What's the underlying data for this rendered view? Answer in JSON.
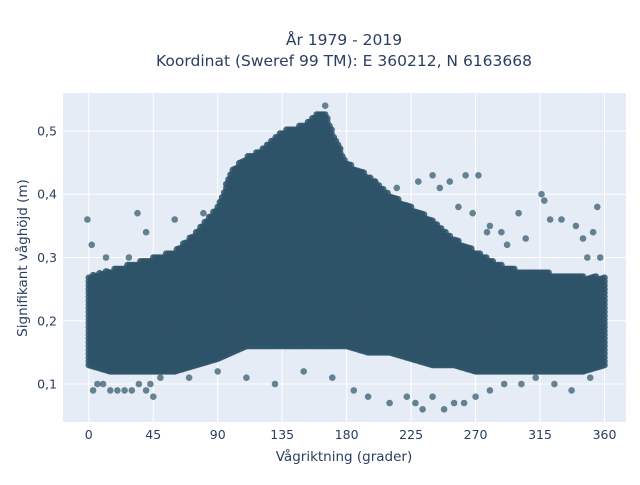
{
  "chart_data": {
    "type": "scatter",
    "title_lines": [
      "År 1979 - 2019",
      "Koordinat (Sweref 99 TM): E 360212, N 6163668"
    ],
    "xlabel": "Vågriktning (grader)",
    "ylabel": "Signifikant våghöjd (m)",
    "xlim": [
      -18,
      375
    ],
    "ylim": [
      0.04,
      0.56
    ],
    "xticks": [
      0,
      45,
      90,
      135,
      180,
      225,
      270,
      315,
      360
    ],
    "xtick_labels": [
      "0",
      "45",
      "90",
      "135",
      "180",
      "225",
      "270",
      "315",
      "360"
    ],
    "yticks": [
      0.1,
      0.2,
      0.3,
      0.4,
      0.5
    ],
    "ytick_labels": [
      "0,1",
      "0,2",
      "0,3",
      "0,4",
      "0,5"
    ],
    "grid": true,
    "colors": {
      "marker": "#2e5469",
      "plot_background": "#e5ecf6",
      "grid": "#ffffff",
      "text": "#2a3f5f"
    },
    "series": [
      {
        "dense_band": [
          [
            0,
            0.13,
            0.27
          ],
          [
            15,
            0.12,
            0.28
          ],
          [
            30,
            0.12,
            0.29
          ],
          [
            45,
            0.12,
            0.3
          ],
          [
            60,
            0.12,
            0.31
          ],
          [
            75,
            0.13,
            0.34
          ],
          [
            90,
            0.14,
            0.38
          ],
          [
            100,
            0.15,
            0.44
          ],
          [
            110,
            0.16,
            0.46
          ],
          [
            120,
            0.16,
            0.47
          ],
          [
            135,
            0.16,
            0.5
          ],
          [
            150,
            0.16,
            0.51
          ],
          [
            160,
            0.16,
            0.53
          ],
          [
            165,
            0.16,
            0.53
          ],
          [
            170,
            0.16,
            0.5
          ],
          [
            180,
            0.16,
            0.45
          ],
          [
            195,
            0.15,
            0.43
          ],
          [
            210,
            0.15,
            0.4
          ],
          [
            225,
            0.14,
            0.38
          ],
          [
            240,
            0.13,
            0.36
          ],
          [
            255,
            0.13,
            0.33
          ],
          [
            270,
            0.12,
            0.31
          ],
          [
            285,
            0.12,
            0.29
          ],
          [
            300,
            0.12,
            0.28
          ],
          [
            315,
            0.12,
            0.28
          ],
          [
            330,
            0.12,
            0.27
          ],
          [
            345,
            0.12,
            0.27
          ],
          [
            360,
            0.13,
            0.27
          ]
        ],
        "outliers": [
          [
            -1,
            0.36
          ],
          [
            2,
            0.32
          ],
          [
            3,
            0.09
          ],
          [
            6,
            0.1
          ],
          [
            10,
            0.1
          ],
          [
            15,
            0.09
          ],
          [
            20,
            0.09
          ],
          [
            25,
            0.09
          ],
          [
            30,
            0.09
          ],
          [
            35,
            0.1
          ],
          [
            40,
            0.09
          ],
          [
            43,
            0.1
          ],
          [
            45,
            0.08
          ],
          [
            34,
            0.37
          ],
          [
            40,
            0.34
          ],
          [
            60,
            0.36
          ],
          [
            80,
            0.37
          ],
          [
            50,
            0.11
          ],
          [
            70,
            0.11
          ],
          [
            90,
            0.12
          ],
          [
            110,
            0.11
          ],
          [
            130,
            0.1
          ],
          [
            150,
            0.12
          ],
          [
            170,
            0.11
          ],
          [
            185,
            0.09
          ],
          [
            195,
            0.08
          ],
          [
            210,
            0.07
          ],
          [
            222,
            0.08
          ],
          [
            228,
            0.07
          ],
          [
            233,
            0.06
          ],
          [
            240,
            0.08
          ],
          [
            248,
            0.06
          ],
          [
            255,
            0.07
          ],
          [
            262,
            0.07
          ],
          [
            270,
            0.08
          ],
          [
            280,
            0.09
          ],
          [
            290,
            0.1
          ],
          [
            302,
            0.1
          ],
          [
            312,
            0.11
          ],
          [
            325,
            0.1
          ],
          [
            337,
            0.09
          ],
          [
            350,
            0.11
          ],
          [
            358,
            0.13
          ],
          [
            165,
            0.54
          ],
          [
            240,
            0.43
          ],
          [
            252,
            0.42
          ],
          [
            263,
            0.43
          ],
          [
            272,
            0.43
          ],
          [
            316,
            0.4
          ],
          [
            318,
            0.39
          ],
          [
            322,
            0.36
          ],
          [
            330,
            0.36
          ],
          [
            340,
            0.35
          ],
          [
            355,
            0.38
          ],
          [
            300,
            0.37
          ],
          [
            280,
            0.35
          ],
          [
            288,
            0.34
          ],
          [
            345,
            0.33
          ],
          [
            352,
            0.34
          ],
          [
            200,
            0.42
          ],
          [
            215,
            0.41
          ],
          [
            230,
            0.42
          ],
          [
            245,
            0.41
          ],
          [
            258,
            0.38
          ],
          [
            268,
            0.37
          ],
          [
            278,
            0.34
          ],
          [
            292,
            0.32
          ],
          [
            305,
            0.33
          ],
          [
            348,
            0.3
          ],
          [
            357,
            0.3
          ],
          [
            12,
            0.3
          ],
          [
            22,
            0.28
          ],
          [
            28,
            0.3
          ]
        ]
      }
    ]
  }
}
